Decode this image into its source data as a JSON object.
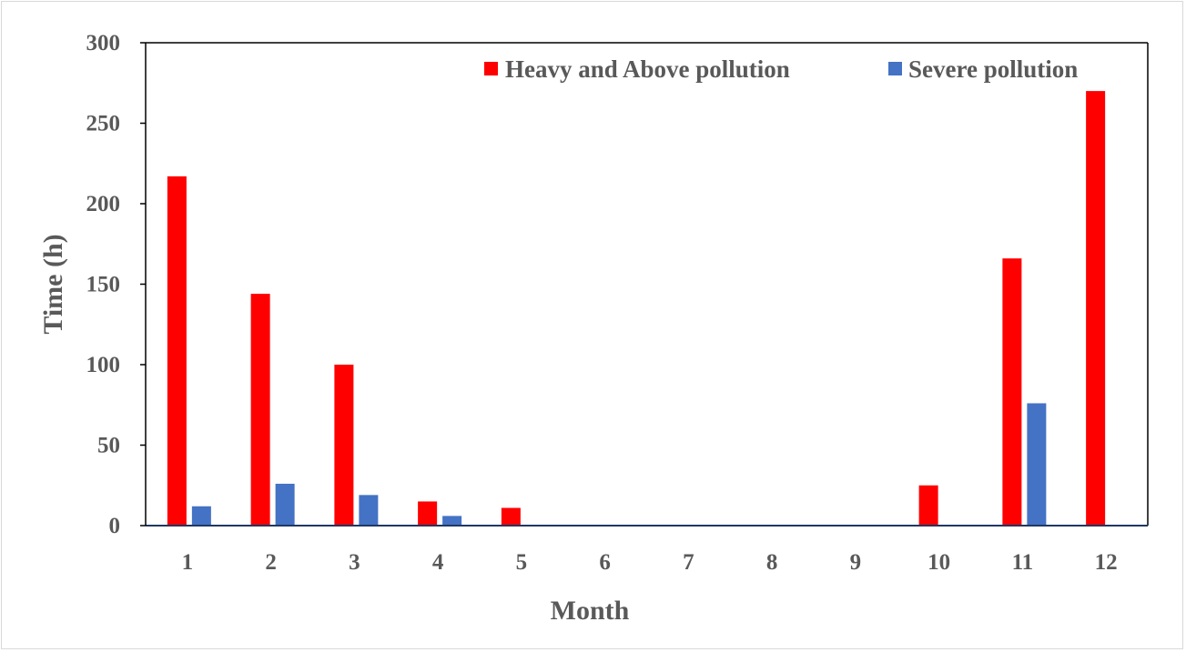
{
  "chart_data": {
    "type": "bar",
    "title": "",
    "xlabel": "Month",
    "ylabel": "Time (h)",
    "categories": [
      "1",
      "2",
      "3",
      "4",
      "5",
      "6",
      "7",
      "8",
      "9",
      "10",
      "11",
      "12"
    ],
    "ylim": [
      0,
      300
    ],
    "yticks": [
      "0",
      "50",
      "100",
      "150",
      "200",
      "250",
      "300"
    ],
    "grid": false,
    "legend_position": "top-right",
    "series": [
      {
        "name": "Heavy and Above pollution",
        "color": "#ff0000",
        "values": [
          217,
          144,
          100,
          15,
          11,
          0,
          0,
          0,
          0,
          25,
          166,
          270
        ]
      },
      {
        "name": "Severe pollution",
        "color": "#4472c4",
        "values": [
          12,
          26,
          19,
          6,
          0,
          0,
          0,
          0,
          0,
          0,
          76,
          0
        ]
      }
    ]
  }
}
